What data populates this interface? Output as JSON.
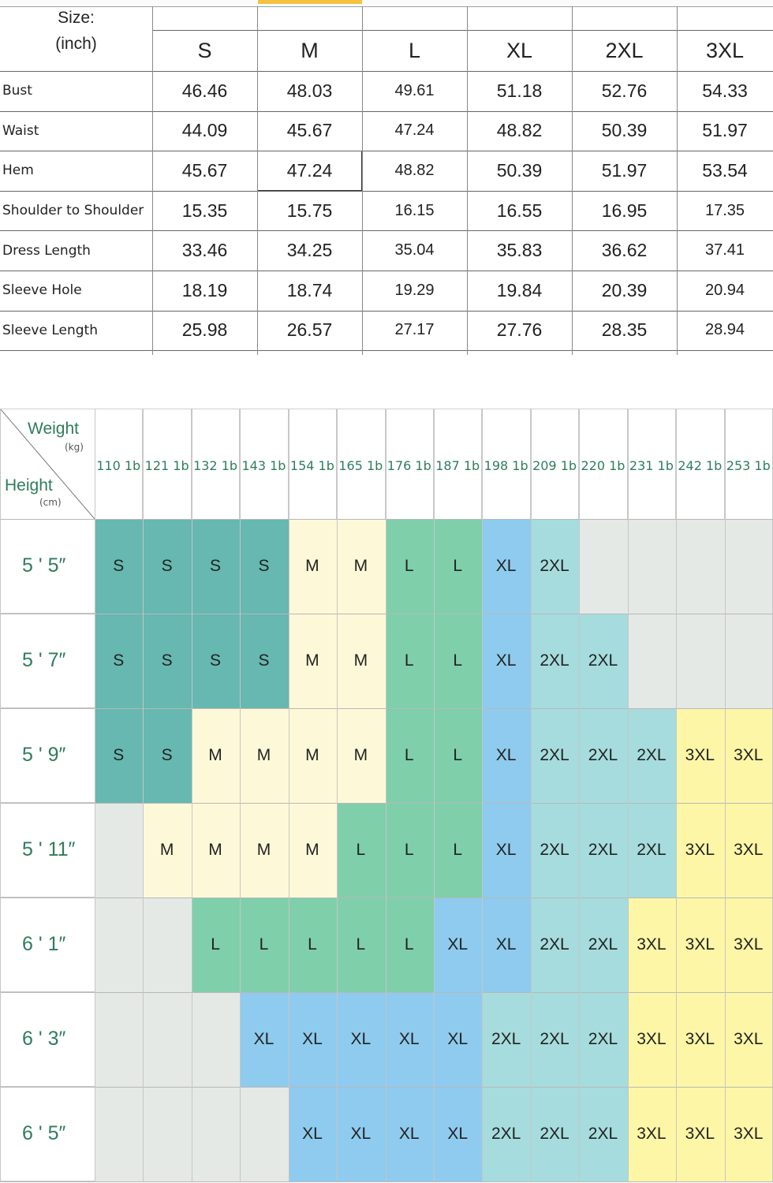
{
  "measurements": {
    "size_label_line1": "Size:",
    "size_label_line2": "(inch)",
    "sizes": [
      "S",
      "M",
      "L",
      "XL",
      "2XL",
      "3XL"
    ],
    "rows": [
      {
        "name": "Bust",
        "values": [
          "46.46",
          "48.03",
          "49.61",
          "51.18",
          "52.76",
          "54.33"
        ]
      },
      {
        "name": "Waist",
        "values": [
          "44.09",
          "45.67",
          "47.24",
          "48.82",
          "50.39",
          "51.97"
        ]
      },
      {
        "name": "Hem",
        "values": [
          "45.67",
          "47.24",
          "48.82",
          "50.39",
          "51.97",
          "53.54"
        ]
      },
      {
        "name": "Shoulder to Shoulder",
        "values": [
          "15.35",
          "15.75",
          "16.15",
          "16.55",
          "16.95",
          "17.35"
        ]
      },
      {
        "name": "Dress Length",
        "values": [
          "33.46",
          "34.25",
          "35.04",
          "35.83",
          "36.62",
          "37.41"
        ]
      },
      {
        "name": "Sleeve Hole",
        "values": [
          "18.19",
          "18.74",
          "19.29",
          "19.84",
          "20.39",
          "20.94"
        ]
      },
      {
        "name": "Sleeve Length",
        "values": [
          "25.98",
          "26.57",
          "27.17",
          "27.76",
          "28.35",
          "28.94"
        ]
      }
    ]
  },
  "size_chart": {
    "weight_label": "Weight",
    "weight_unit": "(kg)",
    "height_label": "Height",
    "height_unit": "(cm)",
    "weights": [
      "110 1b",
      "121 1b",
      "132 1b",
      "143 1b",
      "154 1b",
      "165 1b",
      "176 1b",
      "187 1b",
      "198 1b",
      "209 1b",
      "220 1b",
      "231 1b",
      "242 1b",
      "253 1b"
    ],
    "heights": [
      "5 ' 5″",
      "5 ' 7″",
      "5 ' 9″",
      "5 ' 11″",
      "6 ' 1″",
      "6 ' 3″",
      "6 ' 5″"
    ],
    "grid": [
      [
        "S",
        "S",
        "S",
        "S",
        "M",
        "M",
        "L",
        "L",
        "XL",
        "2XL",
        "",
        "",
        "",
        ""
      ],
      [
        "S",
        "S",
        "S",
        "S",
        "M",
        "M",
        "L",
        "L",
        "XL",
        "2XL",
        "2XL",
        "",
        "",
        ""
      ],
      [
        "S",
        "S",
        "M",
        "M",
        "M",
        "M",
        "L",
        "L",
        "XL",
        "2XL",
        "2XL",
        "2XL",
        "3XL",
        "3XL"
      ],
      [
        "",
        "M",
        "M",
        "M",
        "M",
        "L",
        "L",
        "L",
        "XL",
        "2XL",
        "2XL",
        "2XL",
        "3XL",
        "3XL"
      ],
      [
        "",
        "",
        "L",
        "L",
        "L",
        "L",
        "L",
        "XL",
        "XL",
        "2XL",
        "2XL",
        "3XL",
        "3XL",
        "3XL"
      ],
      [
        "",
        "",
        "",
        "XL",
        "XL",
        "XL",
        "XL",
        "XL",
        "2XL",
        "2XL",
        "2XL",
        "3XL",
        "3XL",
        "3XL"
      ],
      [
        "",
        "",
        "",
        "",
        "XL",
        "XL",
        "XL",
        "XL",
        "2XL",
        "2XL",
        "2XL",
        "3XL",
        "3XL",
        "3XL"
      ]
    ],
    "colors": {
      "S": "#66b8b0",
      "M": "#fdf9d8",
      "L": "#7fcfab",
      "XL": "#8ecbee",
      "2XL": "#a6dcdd",
      "3XL": "#fdf6a6",
      "empty": "#e4e9e6"
    }
  }
}
